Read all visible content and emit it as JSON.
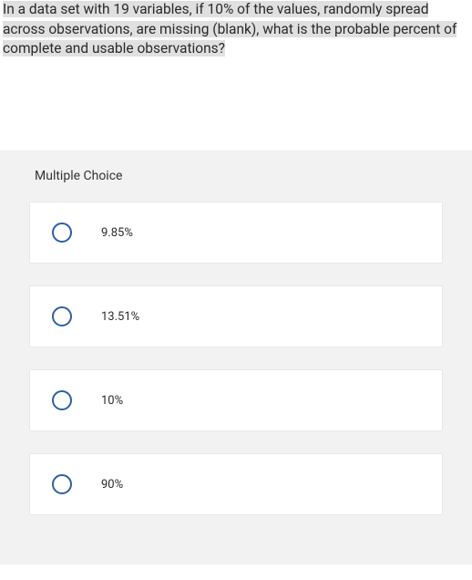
{
  "question": {
    "text": "In a data set with 19 variables, if 10% of the values, randomly spread across observations, are missing (blank), what is the probable percent of complete and usable observations?"
  },
  "section": {
    "header": "Multiple Choice"
  },
  "options": [
    {
      "label": "9.85%"
    },
    {
      "label": "13.51%"
    },
    {
      "label": "10%"
    },
    {
      "label": "90%"
    }
  ],
  "colors": {
    "highlight_bg": "#e0e0e0",
    "answer_section_bg": "#f2f2f2",
    "card_bg": "#ffffff",
    "card_border": "#e8e8e8",
    "radio_border": "#2e5fa3",
    "text_color": "#2a2a2a"
  }
}
